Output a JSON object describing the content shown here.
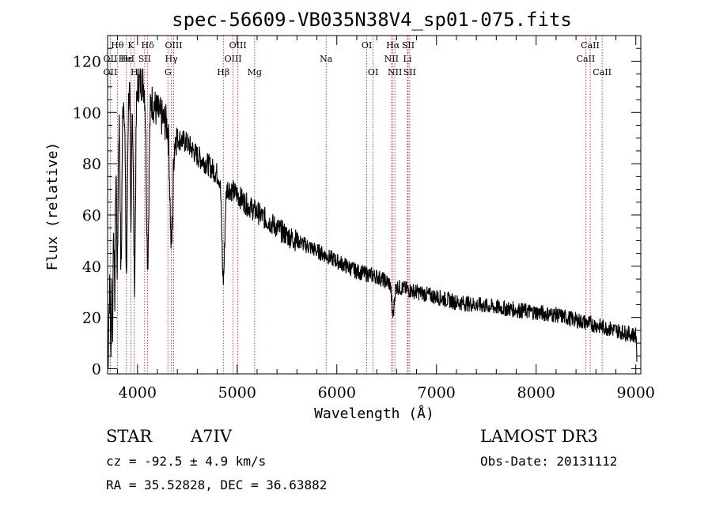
{
  "chart_data": {
    "type": "line",
    "title": "spec-56609-VB035N38V4_sp01-075.fits",
    "xlabel": "Wavelength (Å)",
    "ylabel": "Flux (relative)",
    "xlim": [
      3700,
      9050
    ],
    "ylim": [
      -2,
      130
    ],
    "xticks": [
      4000,
      5000,
      6000,
      7000,
      8000,
      9000
    ],
    "yticks": [
      0,
      20,
      40,
      60,
      80,
      100,
      120
    ],
    "continuum": {
      "x": [
        3700,
        3720,
        3760,
        3800,
        3850,
        3900,
        3950,
        4000,
        4050,
        4100,
        4150,
        4200,
        4300,
        4400,
        4500,
        4600,
        4700,
        4800,
        4900,
        5000,
        5100,
        5200,
        5300,
        5400,
        5500,
        5600,
        5700,
        5800,
        5900,
        6000,
        6100,
        6200,
        6300,
        6400,
        6500,
        6600,
        6700,
        6800,
        6900,
        7000,
        7200,
        7400,
        7600,
        7800,
        8000,
        8200,
        8400,
        8600,
        8800,
        9000,
        9010
      ],
      "y": [
        10,
        30,
        75,
        100,
        105,
        108,
        110,
        111,
        112,
        108,
        104,
        100,
        95,
        90,
        88,
        83,
        80,
        76,
        71,
        68,
        64,
        61,
        58,
        55,
        52,
        50,
        48,
        46,
        44,
        42,
        40,
        38,
        37,
        36,
        34,
        32,
        31,
        30,
        29,
        28,
        26,
        25,
        24,
        23,
        22,
        21,
        19,
        17,
        15,
        13,
        5
      ]
    },
    "absorption_lines": [
      {
        "center": 3705,
        "depth": 10,
        "width": 4
      },
      {
        "center": 3734,
        "depth": 45,
        "width": 4
      },
      {
        "center": 3750,
        "depth": 50,
        "width": 5
      },
      {
        "center": 3771,
        "depth": 55,
        "width": 6
      },
      {
        "center": 3798,
        "depth": 60,
        "width": 7
      },
      {
        "center": 3835,
        "depth": 65,
        "width": 8
      },
      {
        "center": 3889,
        "depth": 70,
        "width": 9
      },
      {
        "center": 3934,
        "depth": 60,
        "width": 5
      },
      {
        "center": 3970,
        "depth": 75,
        "width": 10
      },
      {
        "center": 4102,
        "depth": 65,
        "width": 12
      },
      {
        "center": 4340,
        "depth": 45,
        "width": 14
      },
      {
        "center": 4861,
        "depth": 38,
        "width": 14
      },
      {
        "center": 6563,
        "depth": 12,
        "width": 12
      }
    ],
    "noise": {
      "amplitude": 3.5,
      "seed": 7
    },
    "line_markers": [
      {
        "label": "Hθ",
        "wavelength": 3798,
        "row": 0
      },
      {
        "label": "K",
        "wavelength": 3934,
        "row": 0
      },
      {
        "label": "Hδ",
        "wavelength": 4102,
        "row": 0
      },
      {
        "label": "OIII",
        "wavelength": 4363,
        "row": 0
      },
      {
        "label": "OIII",
        "wavelength": 5007,
        "row": 0
      },
      {
        "label": "OI",
        "wavelength": 6300,
        "row": 0
      },
      {
        "label": "Hα",
        "wavelength": 6563,
        "row": 0
      },
      {
        "label": "SII",
        "wavelength": 6716,
        "row": 0
      },
      {
        "label": "CaII",
        "wavelength": 8542,
        "row": 0
      },
      {
        "label": "OII",
        "wavelength": 3727,
        "row": 1
      },
      {
        "label": "Hε",
        "wavelength": 3889,
        "row": 1
      },
      {
        "label": "HeI",
        "wavelength": 3889,
        "row": 1
      },
      {
        "label": "SII",
        "wavelength": 4072,
        "row": 1
      },
      {
        "label": "Hγ",
        "wavelength": 4340,
        "row": 1
      },
      {
        "label": "OIII",
        "wavelength": 4959,
        "row": 1
      },
      {
        "label": "Na",
        "wavelength": 5893,
        "row": 1
      },
      {
        "label": "NII",
        "wavelength": 6548,
        "row": 1
      },
      {
        "label": "Li",
        "wavelength": 6708,
        "row": 1
      },
      {
        "label": "CaII",
        "wavelength": 8498,
        "row": 1
      },
      {
        "label": "OII",
        "wavelength": 3727,
        "row": 2
      },
      {
        "label": "H",
        "wavelength": 3968,
        "row": 2
      },
      {
        "label": "G",
        "wavelength": 4305,
        "row": 2
      },
      {
        "label": "Hβ",
        "wavelength": 4861,
        "row": 2
      },
      {
        "label": "Mg",
        "wavelength": 5175,
        "row": 2
      },
      {
        "label": "OI",
        "wavelength": 6364,
        "row": 2
      },
      {
        "label": "NII",
        "wavelength": 6583,
        "row": 2
      },
      {
        "label": "SII",
        "wavelength": 6731,
        "row": 2
      },
      {
        "label": "CaII",
        "wavelength": 8662,
        "row": 2
      }
    ],
    "marker_color": "#cc2222",
    "line_color": "#000000"
  },
  "info": {
    "object_type": "STAR",
    "subclass": "A7IV",
    "survey": "LAMOST DR3",
    "cz": "cz = -92.5 ± 4.9 km/s",
    "obs_date": "Obs-Date: 20131112",
    "coords": "RA =  35.52828, DEC =  36.63882"
  }
}
